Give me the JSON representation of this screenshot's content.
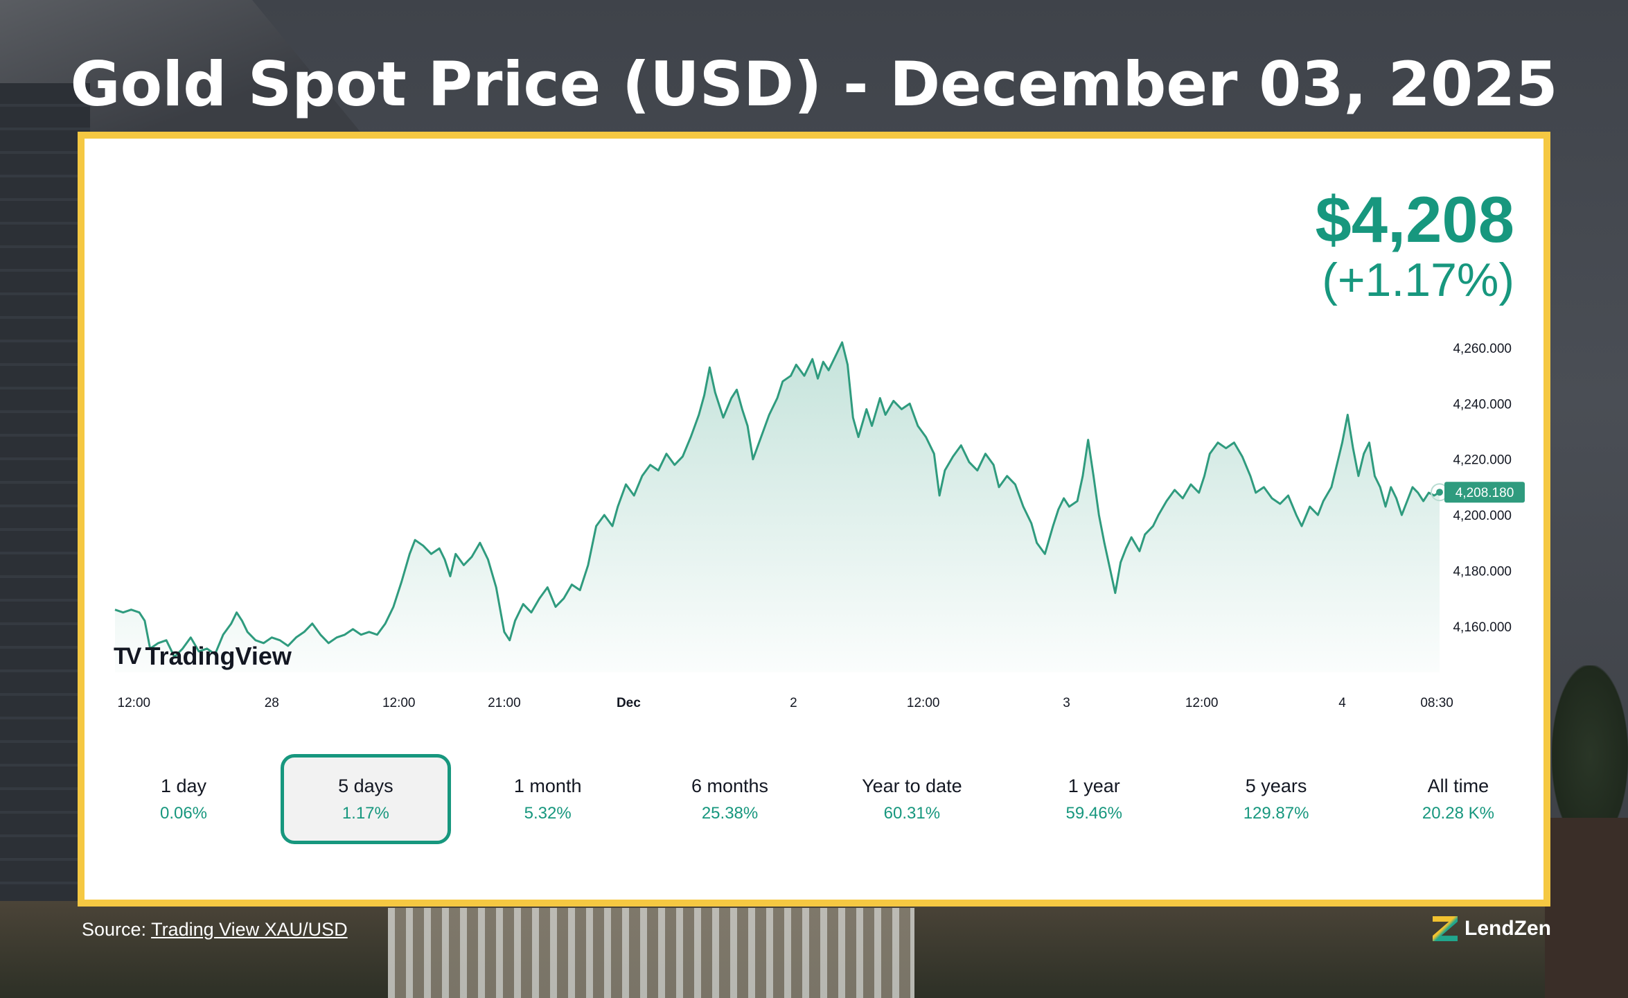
{
  "title": "Gold Spot Price (USD) - December 03, 2025",
  "price": {
    "value": "$4,208",
    "change": "(+1.17%)"
  },
  "watermark": "TradingView",
  "periods": [
    {
      "label": "1 day",
      "value": "0.06%",
      "active": false
    },
    {
      "label": "5 days",
      "value": "1.17%",
      "active": true
    },
    {
      "label": "1 month",
      "value": "5.32%",
      "active": false
    },
    {
      "label": "6 months",
      "value": "25.38%",
      "active": false
    },
    {
      "label": "Year to date",
      "value": "60.31%",
      "active": false
    },
    {
      "label": "1 year",
      "value": "59.46%",
      "active": false
    },
    {
      "label": "5 years",
      "value": "129.87%",
      "active": false
    },
    {
      "label": "All time",
      "value": "20.28 K%",
      "active": false
    }
  ],
  "source": {
    "prefix": "Source: ",
    "link_text": "Trading View XAU/USD"
  },
  "brand": "LendZen",
  "colors": {
    "accent": "#17977e",
    "frame": "#f5c842",
    "line": "#2f9b7e"
  },
  "chart_data": {
    "type": "area",
    "title": "",
    "xlabel": "",
    "ylabel": "",
    "ylim": [
      4146,
      4263
    ],
    "y_ticks": [
      "4,160.000",
      "4,180.000",
      "4,200.000",
      "4,220.000",
      "4,240.000",
      "4,260.000"
    ],
    "y_tick_values": [
      4160,
      4180,
      4200,
      4220,
      4240,
      4260
    ],
    "x_ticks": [
      {
        "label": "12:00",
        "t": 0.7,
        "bold": false
      },
      {
        "label": "28",
        "t": 5.8,
        "bold": false
      },
      {
        "label": "12:00",
        "t": 10.5,
        "bold": false
      },
      {
        "label": "21:00",
        "t": 14.4,
        "bold": false
      },
      {
        "label": "Dec",
        "t": 19.0,
        "bold": true
      },
      {
        "label": "2",
        "t": 25.1,
        "bold": false
      },
      {
        "label": "12:00",
        "t": 29.9,
        "bold": false
      },
      {
        "label": "3",
        "t": 35.2,
        "bold": false
      },
      {
        "label": "12:00",
        "t": 40.2,
        "bold": false
      },
      {
        "label": "4",
        "t": 45.4,
        "bold": false
      },
      {
        "label": "08:30",
        "t": 48.9,
        "bold": false
      }
    ],
    "last_value": 4208.18,
    "last_label": "4,208.180",
    "grid": false,
    "series": [
      {
        "points": [
          [
            0.0,
            4166
          ],
          [
            0.3,
            4165
          ],
          [
            0.6,
            4166
          ],
          [
            0.9,
            4165
          ],
          [
            1.1,
            4162
          ],
          [
            1.3,
            4152
          ],
          [
            1.6,
            4154
          ],
          [
            1.9,
            4155
          ],
          [
            2.2,
            4149
          ],
          [
            2.5,
            4152
          ],
          [
            2.8,
            4156
          ],
          [
            3.1,
            4151
          ],
          [
            3.4,
            4152
          ],
          [
            3.7,
            4150
          ],
          [
            4.0,
            4157
          ],
          [
            4.3,
            4161
          ],
          [
            4.5,
            4165
          ],
          [
            4.7,
            4162
          ],
          [
            4.9,
            4158
          ],
          [
            5.2,
            4155
          ],
          [
            5.5,
            4154
          ],
          [
            5.8,
            4156
          ],
          [
            6.1,
            4155
          ],
          [
            6.4,
            4153
          ],
          [
            6.7,
            4156
          ],
          [
            7.0,
            4158
          ],
          [
            7.3,
            4161
          ],
          [
            7.6,
            4157
          ],
          [
            7.9,
            4154
          ],
          [
            8.2,
            4156
          ],
          [
            8.5,
            4157
          ],
          [
            8.8,
            4159
          ],
          [
            9.1,
            4157
          ],
          [
            9.4,
            4158
          ],
          [
            9.7,
            4157
          ],
          [
            10.0,
            4161
          ],
          [
            10.3,
            4167
          ],
          [
            10.6,
            4176
          ],
          [
            10.9,
            4186
          ],
          [
            11.1,
            4191
          ],
          [
            11.4,
            4189
          ],
          [
            11.7,
            4186
          ],
          [
            12.0,
            4188
          ],
          [
            12.2,
            4184
          ],
          [
            12.4,
            4178
          ],
          [
            12.6,
            4186
          ],
          [
            12.9,
            4182
          ],
          [
            13.2,
            4185
          ],
          [
            13.5,
            4190
          ],
          [
            13.8,
            4184
          ],
          [
            14.1,
            4174
          ],
          [
            14.4,
            4158
          ],
          [
            14.6,
            4155
          ],
          [
            14.8,
            4162
          ],
          [
            15.1,
            4168
          ],
          [
            15.4,
            4165
          ],
          [
            15.7,
            4170
          ],
          [
            16.0,
            4174
          ],
          [
            16.3,
            4167
          ],
          [
            16.6,
            4170
          ],
          [
            16.9,
            4175
          ],
          [
            17.2,
            4173
          ],
          [
            17.5,
            4182
          ],
          [
            17.8,
            4196
          ],
          [
            18.1,
            4200
          ],
          [
            18.4,
            4196
          ],
          [
            18.6,
            4203
          ],
          [
            18.9,
            4211
          ],
          [
            19.2,
            4207
          ],
          [
            19.5,
            4214
          ],
          [
            19.8,
            4218
          ],
          [
            20.1,
            4216
          ],
          [
            20.4,
            4222
          ],
          [
            20.7,
            4218
          ],
          [
            21.0,
            4221
          ],
          [
            21.3,
            4228
          ],
          [
            21.6,
            4236
          ],
          [
            21.8,
            4243
          ],
          [
            22.0,
            4253
          ],
          [
            22.2,
            4244
          ],
          [
            22.5,
            4235
          ],
          [
            22.8,
            4242
          ],
          [
            23.0,
            4245
          ],
          [
            23.2,
            4238
          ],
          [
            23.4,
            4232
          ],
          [
            23.6,
            4220
          ],
          [
            23.9,
            4228
          ],
          [
            24.2,
            4236
          ],
          [
            24.5,
            4242
          ],
          [
            24.7,
            4248
          ],
          [
            25.0,
            4250
          ],
          [
            25.2,
            4254
          ],
          [
            25.5,
            4250
          ],
          [
            25.8,
            4256
          ],
          [
            26.0,
            4249
          ],
          [
            26.2,
            4255
          ],
          [
            26.4,
            4252
          ],
          [
            26.7,
            4258
          ],
          [
            26.9,
            4262
          ],
          [
            27.1,
            4254
          ],
          [
            27.3,
            4235
          ],
          [
            27.5,
            4228
          ],
          [
            27.8,
            4238
          ],
          [
            28.0,
            4232
          ],
          [
            28.3,
            4242
          ],
          [
            28.5,
            4236
          ],
          [
            28.8,
            4241
          ],
          [
            29.1,
            4238
          ],
          [
            29.4,
            4240
          ],
          [
            29.7,
            4232
          ],
          [
            30.0,
            4228
          ],
          [
            30.3,
            4222
          ],
          [
            30.5,
            4207
          ],
          [
            30.7,
            4216
          ],
          [
            31.0,
            4221
          ],
          [
            31.3,
            4225
          ],
          [
            31.6,
            4219
          ],
          [
            31.9,
            4216
          ],
          [
            32.2,
            4222
          ],
          [
            32.5,
            4218
          ],
          [
            32.7,
            4210
          ],
          [
            33.0,
            4214
          ],
          [
            33.3,
            4211
          ],
          [
            33.6,
            4203
          ],
          [
            33.9,
            4197
          ],
          [
            34.1,
            4190
          ],
          [
            34.4,
            4186
          ],
          [
            34.7,
            4196
          ],
          [
            34.9,
            4202
          ],
          [
            35.1,
            4206
          ],
          [
            35.3,
            4203
          ],
          [
            35.6,
            4205
          ],
          [
            35.8,
            4214
          ],
          [
            36.0,
            4227
          ],
          [
            36.2,
            4214
          ],
          [
            36.4,
            4200
          ],
          [
            36.6,
            4190
          ],
          [
            36.8,
            4181
          ],
          [
            37.0,
            4172
          ],
          [
            37.2,
            4183
          ],
          [
            37.4,
            4188
          ],
          [
            37.6,
            4192
          ],
          [
            37.9,
            4187
          ],
          [
            38.1,
            4193
          ],
          [
            38.4,
            4196
          ],
          [
            38.6,
            4200
          ],
          [
            38.9,
            4205
          ],
          [
            39.2,
            4209
          ],
          [
            39.5,
            4206
          ],
          [
            39.8,
            4211
          ],
          [
            40.1,
            4208
          ],
          [
            40.3,
            4214
          ],
          [
            40.5,
            4222
          ],
          [
            40.8,
            4226
          ],
          [
            41.1,
            4224
          ],
          [
            41.4,
            4226
          ],
          [
            41.7,
            4221
          ],
          [
            42.0,
            4214
          ],
          [
            42.2,
            4208
          ],
          [
            42.5,
            4210
          ],
          [
            42.8,
            4206
          ],
          [
            43.1,
            4204
          ],
          [
            43.4,
            4207
          ],
          [
            43.7,
            4200
          ],
          [
            43.9,
            4196
          ],
          [
            44.2,
            4203
          ],
          [
            44.5,
            4200
          ],
          [
            44.7,
            4205
          ],
          [
            45.0,
            4210
          ],
          [
            45.2,
            4218
          ],
          [
            45.4,
            4226
          ],
          [
            45.6,
            4236
          ],
          [
            45.8,
            4224
          ],
          [
            46.0,
            4214
          ],
          [
            46.2,
            4222
          ],
          [
            46.4,
            4226
          ],
          [
            46.6,
            4214
          ],
          [
            46.8,
            4210
          ],
          [
            47.0,
            4203
          ],
          [
            47.2,
            4210
          ],
          [
            47.4,
            4206
          ],
          [
            47.6,
            4200
          ],
          [
            47.8,
            4205
          ],
          [
            48.0,
            4210
          ],
          [
            48.2,
            4208
          ],
          [
            48.4,
            4205
          ],
          [
            48.6,
            4208
          ],
          [
            48.8,
            4207
          ],
          [
            49.0,
            4208.18
          ]
        ]
      }
    ]
  }
}
